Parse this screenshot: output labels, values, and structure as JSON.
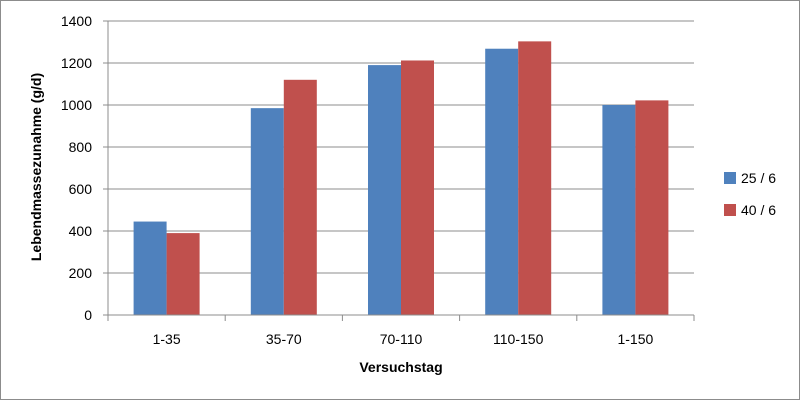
{
  "chart_data": {
    "type": "bar",
    "title": "",
    "xlabel": "Versuchstag",
    "ylabel": "Lebendmassezunahme (g/d)",
    "categories": [
      "1-35",
      "35-70",
      "70-110",
      "110-150",
      "1-150"
    ],
    "ylim": [
      0,
      1400
    ],
    "yticks": [
      0,
      200,
      400,
      600,
      800,
      1000,
      1200,
      1400
    ],
    "grid": true,
    "legend_position": "right",
    "series": [
      {
        "name": "25 / 6",
        "color": "#4F81BD",
        "values": [
          445,
          985,
          1190,
          1268,
          1000
        ]
      },
      {
        "name": "40 / 6",
        "color": "#C0504D",
        "values": [
          390,
          1120,
          1212,
          1303,
          1022
        ]
      }
    ]
  }
}
